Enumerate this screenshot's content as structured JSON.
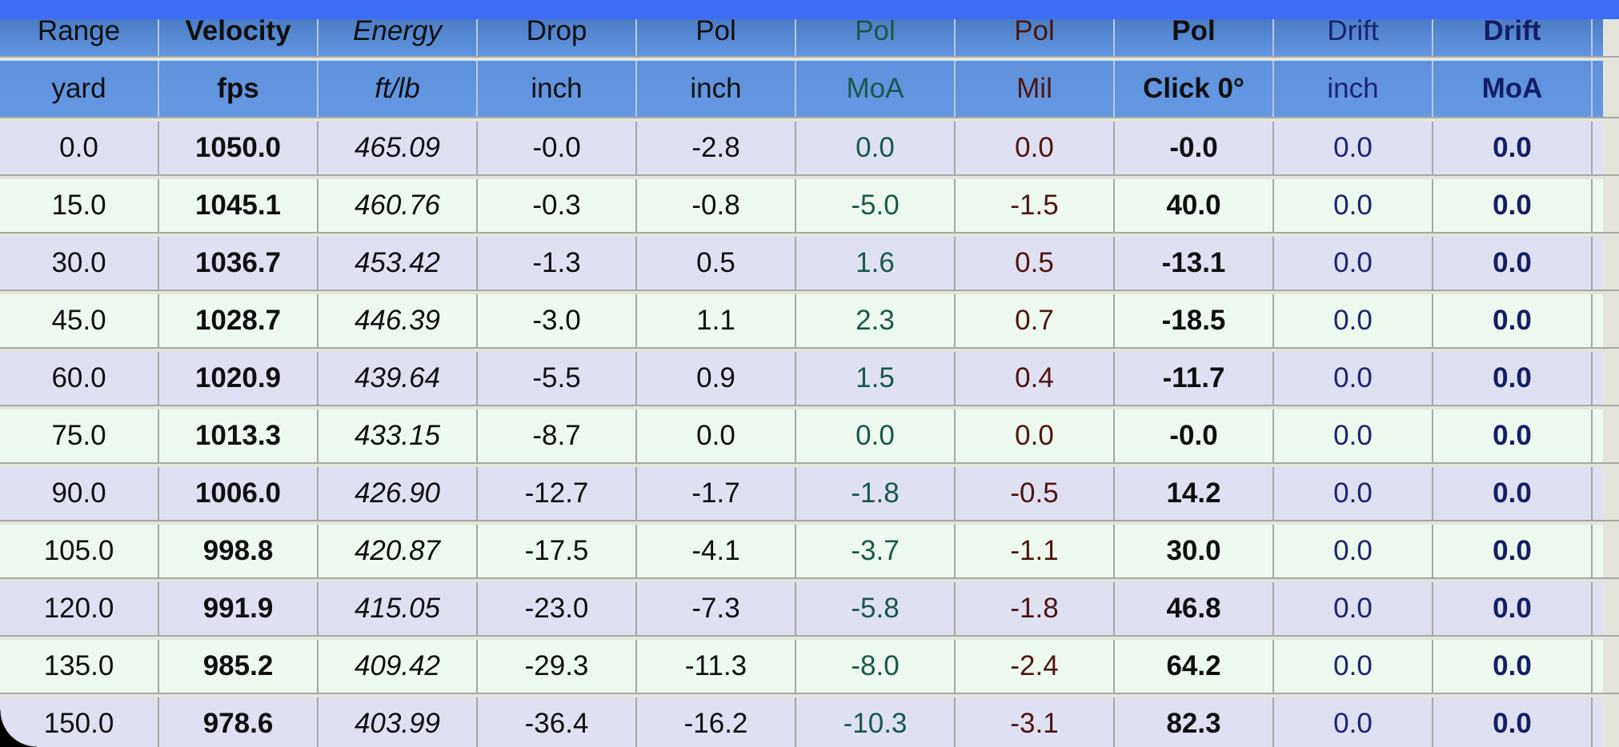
{
  "table": {
    "columns": [
      {
        "key": "range",
        "header": "Range",
        "unit": "yard",
        "style": "plain"
      },
      {
        "key": "velocity",
        "header": "Velocity",
        "unit": "fps",
        "style": "bold"
      },
      {
        "key": "energy",
        "header": "Energy",
        "unit": "ft/lb",
        "style": "italic"
      },
      {
        "key": "drop",
        "header": "Drop",
        "unit": "inch",
        "style": "plain"
      },
      {
        "key": "pol_inch",
        "header": "Pol",
        "unit": "inch",
        "style": "plain"
      },
      {
        "key": "pol_moa",
        "header": "Pol",
        "unit": "MoA",
        "style": "green"
      },
      {
        "key": "pol_mil",
        "header": "Pol",
        "unit": "Mil",
        "style": "maroon"
      },
      {
        "key": "pol_click",
        "header": "Pol",
        "unit": "Click 0°",
        "style": "bold"
      },
      {
        "key": "drift_inch",
        "header": "Drift",
        "unit": "inch",
        "style": "navy"
      },
      {
        "key": "drift_moa",
        "header": "Drift",
        "unit": "MoA",
        "style": "navy-bold"
      }
    ],
    "rows": [
      [
        "0.0",
        "1050.0",
        "465.09",
        "-0.0",
        "-2.8",
        "0.0",
        "0.0",
        "-0.0",
        "0.0",
        "0.0"
      ],
      [
        "15.0",
        "1045.1",
        "460.76",
        "-0.3",
        "-0.8",
        "-5.0",
        "-1.5",
        "40.0",
        "0.0",
        "0.0"
      ],
      [
        "30.0",
        "1036.7",
        "453.42",
        "-1.3",
        "0.5",
        "1.6",
        "0.5",
        "-13.1",
        "0.0",
        "0.0"
      ],
      [
        "45.0",
        "1028.7",
        "446.39",
        "-3.0",
        "1.1",
        "2.3",
        "0.7",
        "-18.5",
        "0.0",
        "0.0"
      ],
      [
        "60.0",
        "1020.9",
        "439.64",
        "-5.5",
        "0.9",
        "1.5",
        "0.4",
        "-11.7",
        "0.0",
        "0.0"
      ],
      [
        "75.0",
        "1013.3",
        "433.15",
        "-8.7",
        "0.0",
        "0.0",
        "0.0",
        "-0.0",
        "0.0",
        "0.0"
      ],
      [
        "90.0",
        "1006.0",
        "426.90",
        "-12.7",
        "-1.7",
        "-1.8",
        "-0.5",
        "14.2",
        "0.0",
        "0.0"
      ],
      [
        "105.0",
        "998.8",
        "420.87",
        "-17.5",
        "-4.1",
        "-3.7",
        "-1.1",
        "30.0",
        "0.0",
        "0.0"
      ],
      [
        "120.0",
        "991.9",
        "415.05",
        "-23.0",
        "-7.3",
        "-5.8",
        "-1.8",
        "46.8",
        "0.0",
        "0.0"
      ],
      [
        "135.0",
        "985.2",
        "409.42",
        "-29.3",
        "-11.3",
        "-8.0",
        "-2.4",
        "64.2",
        "0.0",
        "0.0"
      ],
      [
        "150.0",
        "978.6",
        "403.99",
        "-36.4",
        "-16.2",
        "-10.3",
        "-3.1",
        "82.3",
        "0.0",
        "0.0"
      ]
    ]
  },
  "colors": {
    "top_bar": "#3d6cf5",
    "header_top": "#4b7dc5",
    "header_bottom": "#6598e3",
    "row_even": "#dfe0f2",
    "row_odd": "#edf8ee",
    "grid": "#a6aaa2",
    "gap": "#e3e5dd",
    "text": "#0f0f0f",
    "green": "#17594b",
    "maroon": "#4e150f",
    "navy": "#1b2370",
    "navy_bold": "#141e63"
  }
}
